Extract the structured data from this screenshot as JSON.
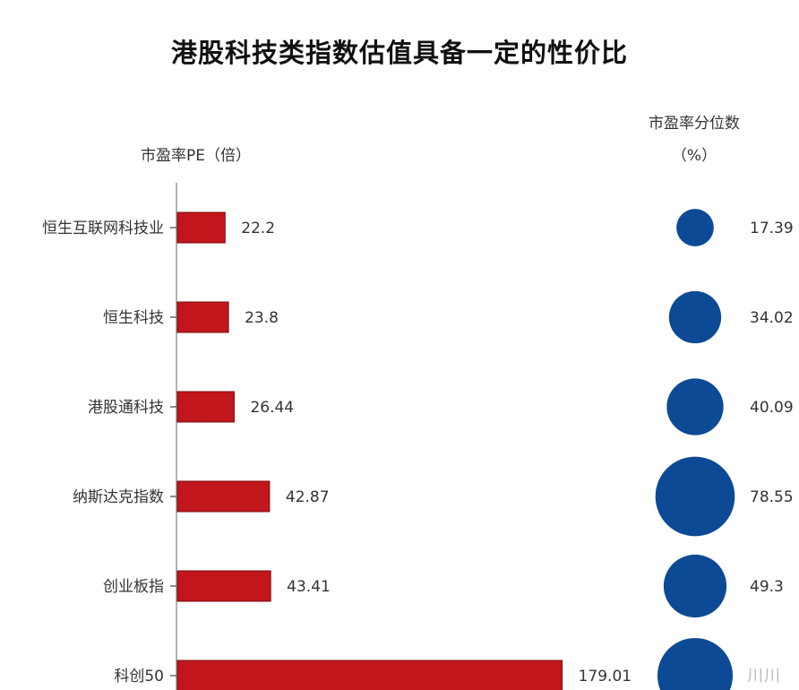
{
  "chart_data": {
    "type": "bar",
    "title": "港股科技类指数估值具备一定的性价比",
    "pe_axis_label": "市盈率PE（倍）",
    "percentile_label_line1": "市盈率分位数",
    "percentile_label_line2": "（%）",
    "categories": [
      "恒生互联网科技业",
      "恒生科技",
      "港股通科技",
      "纳斯达克指数",
      "创业板指",
      "科创50"
    ],
    "series": [
      {
        "values": [
          22.2,
          23.8,
          26.44,
          42.87,
          43.41,
          179.01
        ],
        "value_labels": [
          "22.2",
          "23.8",
          "26.44",
          "42.87",
          "43.41",
          "179.01"
        ]
      },
      {
        "values": [
          17.39,
          34.02,
          40.09,
          78.55,
          49.3,
          null
        ],
        "value_labels": [
          "17.39",
          "34.02",
          "40.09",
          "78.55",
          "49.3",
          ""
        ]
      }
    ],
    "colors": {
      "bar": "#c0161c",
      "bubble": "#0d4a95",
      "axis": "#999999"
    },
    "grid": false
  },
  "watermark": "川川"
}
